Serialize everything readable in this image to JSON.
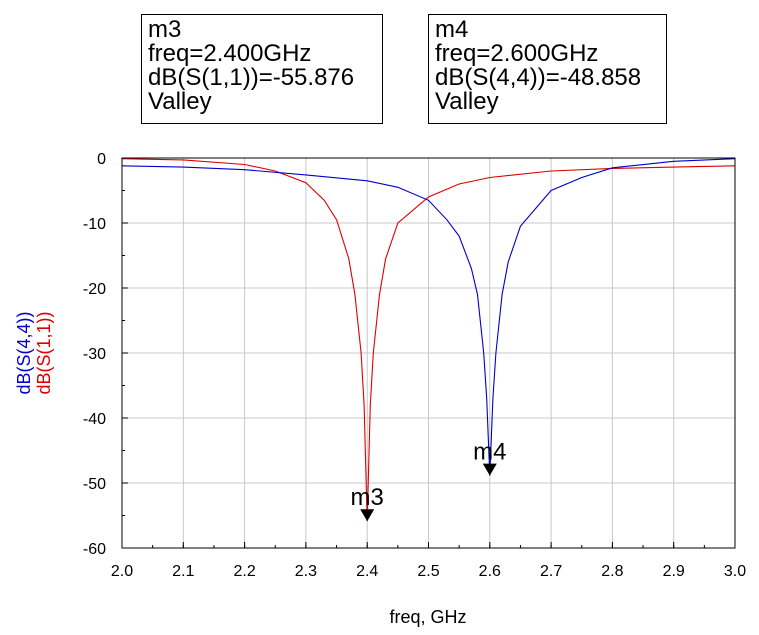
{
  "markers": [
    {
      "id": "m3",
      "lines": [
        "m3",
        "freq=2.400GHz",
        "dB(S(1,1))=-55.876",
        "Valley"
      ],
      "freq": 2.4,
      "value": -55.876,
      "series": "dB(S(1,1))"
    },
    {
      "id": "m4",
      "lines": [
        "m4",
        "freq=2.600GHz",
        "dB(S(4,4))=-48.858",
        "Valley"
      ],
      "freq": 2.6,
      "value": -48.858,
      "series": "dB(S(4,4))"
    }
  ],
  "chart_data": {
    "type": "line",
    "xlabel": "freq, GHz",
    "ylabels": [
      {
        "text": "dB(S(4,4))",
        "color": "#0000cc"
      },
      {
        "text": "dB(S(1,1))",
        "color": "#dd0000"
      }
    ],
    "xlim": [
      2.0,
      3.0
    ],
    "ylim": [
      -60,
      0
    ],
    "x_ticks": [
      "2.0",
      "2.1",
      "2.2",
      "2.3",
      "2.4",
      "2.5",
      "2.6",
      "2.7",
      "2.8",
      "2.9",
      "3.0"
    ],
    "y_ticks": [
      "0",
      "-10",
      "-20",
      "-30",
      "-40",
      "-50",
      "-60"
    ],
    "grid": true,
    "series": [
      {
        "name": "dB(S(1,1))",
        "color": "#dd0000",
        "x": [
          2.0,
          2.1,
          2.2,
          2.25,
          2.3,
          2.33,
          2.35,
          2.37,
          2.38,
          2.39,
          2.395,
          2.4,
          2.405,
          2.41,
          2.42,
          2.43,
          2.45,
          2.5,
          2.55,
          2.6,
          2.7,
          2.8,
          2.9,
          3.0
        ],
        "y": [
          -0.1,
          -0.3,
          -1.0,
          -2.0,
          -3.8,
          -6.5,
          -9.5,
          -15.5,
          -21.0,
          -30.0,
          -38.0,
          -55.876,
          -38.0,
          -30.0,
          -21.0,
          -15.5,
          -10.0,
          -6.0,
          -4.0,
          -3.0,
          -2.0,
          -1.6,
          -1.4,
          -1.2
        ]
      },
      {
        "name": "dB(S(4,4))",
        "color": "#0000cc",
        "x": [
          2.0,
          2.1,
          2.2,
          2.3,
          2.4,
          2.45,
          2.5,
          2.53,
          2.55,
          2.57,
          2.58,
          2.59,
          2.595,
          2.6,
          2.605,
          2.61,
          2.62,
          2.63,
          2.65,
          2.7,
          2.75,
          2.8,
          2.9,
          3.0
        ],
        "y": [
          -1.2,
          -1.4,
          -1.8,
          -2.6,
          -3.5,
          -4.5,
          -6.5,
          -9.5,
          -12.0,
          -17.0,
          -21.0,
          -30.0,
          -37.0,
          -48.858,
          -37.0,
          -30.0,
          -21.0,
          -16.0,
          -10.5,
          -5.0,
          -3.0,
          -1.5,
          -0.5,
          -0.1
        ]
      }
    ]
  }
}
